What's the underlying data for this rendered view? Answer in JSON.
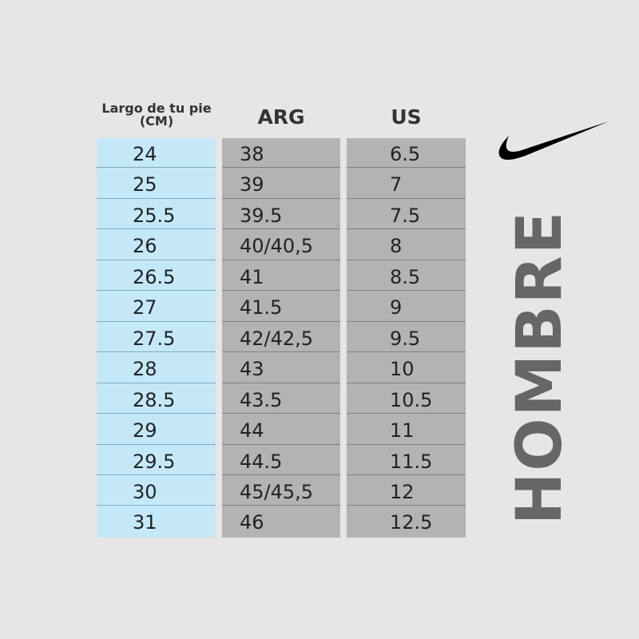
{
  "headers": {
    "cm": "Largo de tu pie (CM)",
    "arg": "ARG",
    "us": "US"
  },
  "rows": [
    {
      "cm": "24",
      "arg": "38",
      "us": "6.5"
    },
    {
      "cm": "25",
      "arg": "39",
      "us": "7"
    },
    {
      "cm": "25.5",
      "arg": "39.5",
      "us": "7.5"
    },
    {
      "cm": "26",
      "arg": "40/40,5",
      "us": "8"
    },
    {
      "cm": "26.5",
      "arg": "41",
      "us": "8.5"
    },
    {
      "cm": "27",
      "arg": "41.5",
      "us": "9"
    },
    {
      "cm": "27.5",
      "arg": "42/42,5",
      "us": "9.5"
    },
    {
      "cm": "28",
      "arg": "43",
      "us": "10"
    },
    {
      "cm": "28.5",
      "arg": "43.5",
      "us": "10.5"
    },
    {
      "cm": "29",
      "arg": "44",
      "us": "11"
    },
    {
      "cm": "29.5",
      "arg": "44.5",
      "us": "11.5"
    },
    {
      "cm": "30",
      "arg": "45/45,5",
      "us": "12"
    },
    {
      "cm": "31",
      "arg": "46",
      "us": "12.5"
    }
  ],
  "side_label": "HOMBRE",
  "logo": {
    "icon": "nike-swoosh-icon",
    "color": "#000000"
  },
  "colors": {
    "cm_column": "#c4e8f8",
    "size_columns": "#b3b3b3",
    "background": "#e6e6e6",
    "side_label": "#666666"
  }
}
